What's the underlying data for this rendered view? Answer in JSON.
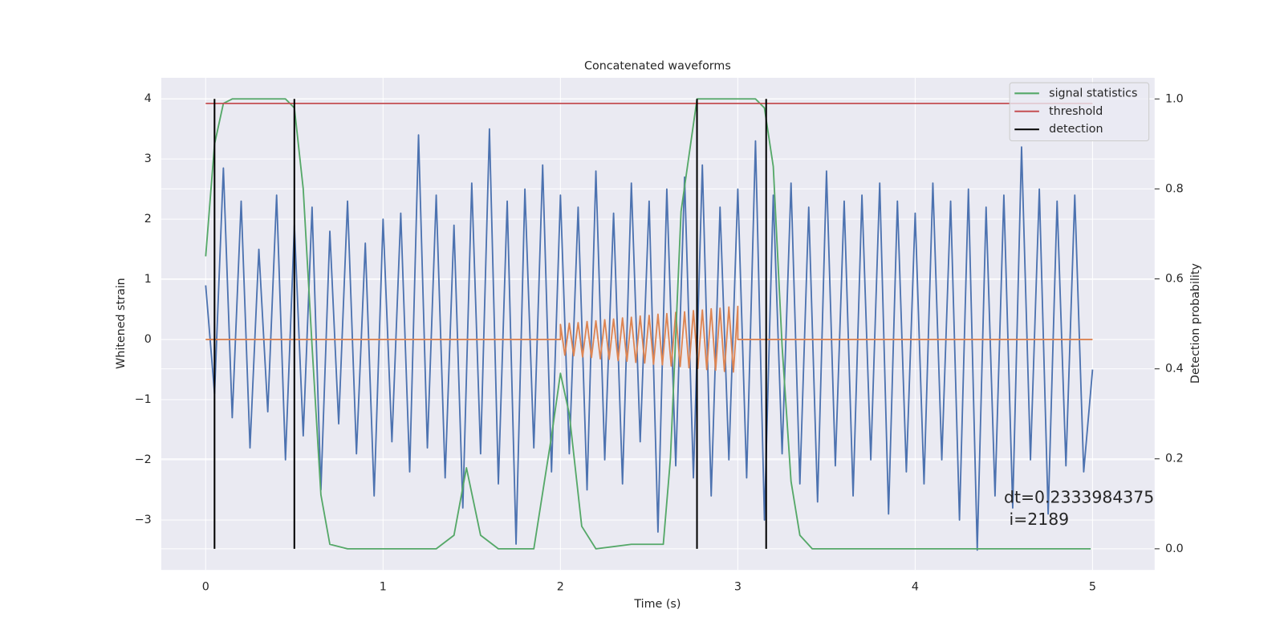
{
  "chart_data": {
    "type": "line",
    "title": "Concatenated waveforms",
    "xlabel": "Time (s)",
    "ylabel": "Whitened strain",
    "y2label": "Detection probability",
    "xlim": [
      -0.25,
      5.35
    ],
    "ylim": [
      -3.83,
      4.35
    ],
    "y2lim": [
      -0.047,
      1.047
    ],
    "xticks": [
      0,
      1,
      2,
      3,
      4,
      5
    ],
    "yticks": [
      {
        "value": -3,
        "label": "−3"
      },
      {
        "value": -2,
        "label": "−2"
      },
      {
        "value": -1,
        "label": "−1"
      },
      0,
      1,
      2,
      3,
      4
    ],
    "y2ticks": [
      {
        "value": 0,
        "label": "0.0"
      },
      0.2,
      0.4,
      0.6,
      0.8,
      {
        "value": 1,
        "label": "1.0"
      }
    ],
    "grid": true,
    "legend": "upper right",
    "annotation": [
      "dt=0.2333984375",
      " i=2189"
    ],
    "series": [
      {
        "color": "#4c72b0",
        "axis": "y",
        "x": [
          0,
          0.05,
          0.1,
          0.15,
          0.2,
          0.25,
          0.3,
          0.35,
          0.4,
          0.45,
          0.5,
          0.55,
          0.6,
          0.65,
          0.7,
          0.75,
          0.8,
          0.85,
          0.9,
          0.95,
          1,
          1.05,
          1.1,
          1.15,
          1.2,
          1.25,
          1.3,
          1.35,
          1.4,
          1.45,
          1.5,
          1.55,
          1.6,
          1.65,
          1.7,
          1.75,
          1.8,
          1.85,
          1.9,
          1.95,
          2,
          2.05,
          2.1,
          2.15,
          2.2,
          2.25,
          2.3,
          2.35,
          2.4,
          2.45,
          2.5,
          2.55,
          2.6,
          2.65,
          2.7,
          2.75,
          2.8,
          2.85,
          2.9,
          2.95,
          3,
          3.05,
          3.1,
          3.15,
          3.2,
          3.25,
          3.3,
          3.35,
          3.4,
          3.45,
          3.5,
          3.55,
          3.6,
          3.65,
          3.7,
          3.75,
          3.8,
          3.85,
          3.9,
          3.95,
          4,
          4.05,
          4.1,
          4.15,
          4.2,
          4.25,
          4.3,
          4.35,
          4.4,
          4.45,
          4.5,
          4.55,
          4.6,
          4.65,
          4.7,
          4.75,
          4.8,
          4.85,
          4.9,
          4.95,
          5
        ],
        "values": [
          0.9,
          -0.9,
          2.85,
          -1.3,
          2.3,
          -1.8,
          1.5,
          -1.2,
          2.4,
          -2.0,
          1.9,
          -1.6,
          2.2,
          -2.5,
          1.8,
          -1.4,
          2.3,
          -1.9,
          1.6,
          -2.6,
          2.0,
          -1.7,
          2.1,
          -2.2,
          3.4,
          -1.8,
          2.4,
          -2.3,
          1.9,
          -2.8,
          2.6,
          -1.9,
          3.5,
          -2.4,
          2.3,
          -3.4,
          2.5,
          -1.8,
          2.9,
          -2.2,
          2.4,
          -1.9,
          2.2,
          -2.5,
          2.8,
          -2.0,
          2.1,
          -2.4,
          2.6,
          -1.7,
          2.3,
          -3.2,
          2.5,
          -2.1,
          2.7,
          -2.3,
          2.9,
          -2.6,
          2.2,
          -2.0,
          2.5,
          -2.3,
          3.3,
          -3.0,
          2.4,
          -1.9,
          2.6,
          -2.4,
          2.2,
          -2.7,
          2.8,
          -2.1,
          2.3,
          -2.6,
          2.4,
          -2.0,
          2.6,
          -2.9,
          2.3,
          -2.2,
          2.1,
          -2.4,
          2.6,
          -2.0,
          2.3,
          -3.0,
          2.5,
          -3.5,
          2.2,
          -2.6,
          2.4,
          -2.8,
          3.2,
          -2.0,
          2.5,
          -2.9,
          2.3,
          -2.1,
          2.4,
          -2.2,
          -0.5
        ]
      },
      {
        "color": "#dd8452",
        "axis": "y",
        "x": [
          0,
          2,
          2,
          2.025,
          2.05,
          2.075,
          2.1,
          2.125,
          2.15,
          2.175,
          2.2,
          2.225,
          2.25,
          2.275,
          2.3,
          2.325,
          2.35,
          2.375,
          2.4,
          2.425,
          2.45,
          2.475,
          2.5,
          2.525,
          2.55,
          2.575,
          2.6,
          2.625,
          2.65,
          2.675,
          2.7,
          2.725,
          2.75,
          2.775,
          2.8,
          2.825,
          2.85,
          2.875,
          2.9,
          2.925,
          2.95,
          2.975,
          3,
          3,
          5
        ],
        "values": [
          0,
          0,
          0.25,
          -0.26,
          0.27,
          -0.27,
          0.28,
          -0.29,
          0.3,
          -0.3,
          0.31,
          -0.32,
          0.33,
          -0.33,
          0.34,
          -0.35,
          0.36,
          -0.36,
          0.37,
          -0.38,
          0.39,
          -0.39,
          0.4,
          -0.41,
          0.42,
          -0.42,
          0.43,
          -0.44,
          0.45,
          -0.45,
          0.46,
          -0.47,
          0.48,
          -0.48,
          0.49,
          -0.5,
          0.51,
          -0.51,
          0.52,
          -0.53,
          0.54,
          -0.54,
          0.55,
          0,
          0
        ]
      },
      {
        "name": "signal statistics",
        "color": "#55a868",
        "axis": "y2",
        "x": [
          0,
          0.05,
          0.1,
          0.15,
          0.3,
          0.45,
          0.5,
          0.55,
          0.6,
          0.65,
          0.7,
          0.8,
          1.3,
          1.4,
          1.47,
          1.55,
          1.65,
          1.85,
          1.95,
          2.0,
          2.05,
          2.12,
          2.2,
          2.4,
          2.5,
          2.58,
          2.62,
          2.68,
          2.77,
          2.85,
          3.1,
          3.15,
          3.2,
          3.25,
          3.3,
          3.35,
          3.42,
          3.6,
          4.99
        ],
        "values": [
          0.65,
          0.9,
          0.99,
          1.0,
          1.0,
          1.0,
          0.98,
          0.8,
          0.45,
          0.12,
          0.01,
          0.0,
          0.0,
          0.03,
          0.18,
          0.03,
          0.0,
          0.0,
          0.25,
          0.39,
          0.3,
          0.05,
          0.0,
          0.01,
          0.01,
          0.01,
          0.2,
          0.75,
          1.0,
          1.0,
          1.0,
          0.98,
          0.85,
          0.45,
          0.15,
          0.03,
          0.0,
          0.0,
          0.0
        ]
      },
      {
        "name": "threshold",
        "color": "#c44e52",
        "axis": "y2",
        "x": [
          0,
          5
        ],
        "values": [
          0.99,
          0.99
        ]
      },
      {
        "name": "detection",
        "color": "#000000",
        "axis": "y2",
        "x": [
          0.05,
          0.5,
          2.77,
          3.16
        ],
        "span": [
          0,
          1
        ]
      }
    ]
  }
}
